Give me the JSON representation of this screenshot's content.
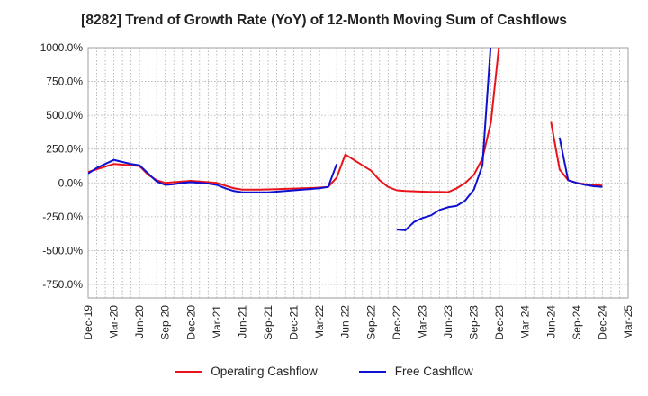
{
  "chart_data": {
    "type": "line",
    "title": "[8282]  Trend of Growth Rate (YoY) of 12-Month Moving Sum of Cashflows",
    "xlabel": "",
    "ylabel": "",
    "ylim": [
      -850,
      1000
    ],
    "y_ticks": [
      1000,
      750,
      500,
      250,
      0,
      -250,
      -500,
      -750
    ],
    "y_tick_labels": [
      "1000.0%",
      "750.0%",
      "500.0%",
      "250.0%",
      "0.0%",
      "-250.0%",
      "-500.0%",
      "-750.0%"
    ],
    "x_tick_labels": [
      "Dec-19",
      "Mar-20",
      "Jun-20",
      "Sep-20",
      "Dec-20",
      "Mar-21",
      "Jun-21",
      "Sep-21",
      "Dec-21",
      "Mar-22",
      "Jun-22",
      "Sep-22",
      "Dec-22",
      "Mar-23",
      "Jun-23",
      "Sep-23",
      "Dec-23",
      "Mar-24",
      "Jun-24",
      "Sep-24",
      "Dec-24",
      "Mar-25"
    ],
    "grid": true,
    "legend_position": "bottom",
    "series": [
      {
        "name": "Operating Cashflow",
        "color": "#e8131b",
        "x": [
          "Dec-19",
          "Jan-20",
          "Feb-20",
          "Mar-20",
          "Apr-20",
          "May-20",
          "Jun-20",
          "Jul-20",
          "Aug-20",
          "Sep-20",
          "Oct-20",
          "Nov-20",
          "Dec-20",
          "Jan-21",
          "Feb-21",
          "Mar-21",
          "Apr-21",
          "May-21",
          "Jun-21",
          "Jul-21",
          "Aug-21",
          "Sep-21",
          "Oct-21",
          "Nov-21",
          "Dec-21",
          "Jan-22",
          "Feb-22",
          "Mar-22",
          "Apr-22",
          "May-22",
          "Jun-22",
          "Jul-22",
          "Aug-22",
          "Sep-22",
          "Oct-22",
          "Nov-22",
          "Dec-22",
          "Jan-23",
          "Feb-23",
          "Mar-23",
          "Apr-23",
          "May-23",
          "Jun-23",
          "Jul-23",
          "Aug-23",
          "Sep-23",
          "Oct-23",
          "Nov-23",
          "Dec-23",
          "Jan-24",
          "Feb-24",
          "Mar-24",
          "Apr-24",
          "May-24",
          "Jun-24",
          "Jul-24",
          "Aug-24",
          "Sep-24",
          "Oct-24",
          "Nov-24",
          "Dec-24"
        ],
        "values": [
          80,
          100,
          120,
          140,
          135,
          130,
          125,
          60,
          20,
          0,
          5,
          10,
          15,
          10,
          5,
          0,
          -20,
          -40,
          -50,
          -50,
          -50,
          -48,
          -46,
          -44,
          -42,
          -40,
          -38,
          -35,
          -30,
          40,
          210,
          170,
          130,
          90,
          20,
          -30,
          -55,
          -60,
          -62,
          -65,
          -66,
          -67,
          -68,
          -40,
          0,
          60,
          180,
          450,
          1050,
          null,
          null,
          null,
          null,
          null,
          450,
          100,
          20,
          0,
          -10,
          -15,
          -20
        ]
      },
      {
        "name": "Free Cashflow",
        "color": "#1010d0",
        "x": [
          "Dec-19",
          "Jan-20",
          "Feb-20",
          "Mar-20",
          "Apr-20",
          "May-20",
          "Jun-20",
          "Jul-20",
          "Aug-20",
          "Sep-20",
          "Oct-20",
          "Nov-20",
          "Dec-20",
          "Jan-21",
          "Feb-21",
          "Mar-21",
          "Apr-21",
          "May-21",
          "Jun-21",
          "Jul-21",
          "Aug-21",
          "Sep-21",
          "Oct-21",
          "Nov-21",
          "Dec-21",
          "Jan-22",
          "Feb-22",
          "Mar-22",
          "Apr-22",
          "May-22",
          "Jun-22",
          "Jul-22",
          "Aug-22",
          "Sep-22",
          "Oct-22",
          "Nov-22",
          "Dec-22",
          "Jan-23",
          "Feb-23",
          "Mar-23",
          "Apr-23",
          "May-23",
          "Jun-23",
          "Jul-23",
          "Aug-23",
          "Sep-23",
          "Oct-23",
          "Nov-23",
          "Dec-23",
          "Jan-24",
          "Feb-24",
          "Mar-24",
          "Apr-24",
          "May-24",
          "Jun-24",
          "Jul-24",
          "Aug-24",
          "Sep-24",
          "Oct-24",
          "Nov-24",
          "Dec-24"
        ],
        "values": [
          70,
          110,
          140,
          170,
          155,
          140,
          130,
          70,
          10,
          -15,
          -10,
          0,
          5,
          0,
          -5,
          -15,
          -40,
          -60,
          -70,
          -70,
          -70,
          -70,
          -65,
          -60,
          -55,
          -50,
          -45,
          -40,
          -30,
          140,
          null,
          null,
          null,
          null,
          null,
          null,
          -345,
          -350,
          -290,
          -260,
          -240,
          -200,
          -180,
          -170,
          -130,
          -50,
          130,
          1050,
          null,
          null,
          null,
          null,
          null,
          null,
          null,
          335,
          20,
          0,
          -15,
          -25,
          -30
        ]
      }
    ]
  }
}
